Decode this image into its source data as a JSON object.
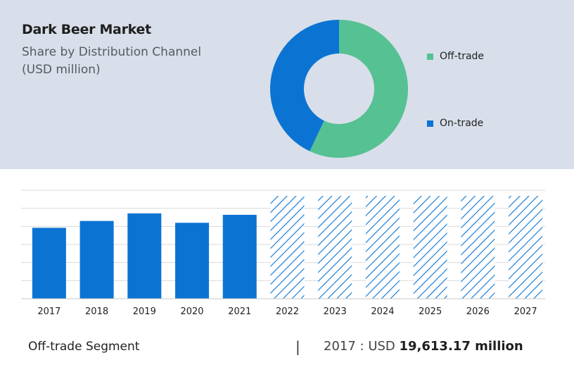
{
  "header": {
    "title": "Dark Beer Market",
    "subtitle_line1": "Share by Distribution Channel",
    "subtitle_line2": "(USD million)"
  },
  "colors": {
    "off_trade": "#56c193",
    "on_trade": "#0b74d3",
    "bar": "#0b74d3",
    "forecast_hatch": "#0b74d3",
    "top_background": "#d8dfea",
    "gridline": "#d9d9d9"
  },
  "chart_data": [
    {
      "type": "pie",
      "variant": "donut",
      "series": [
        {
          "name": "Off-trade",
          "value": 57
        },
        {
          "name": "On-trade",
          "value": 43
        }
      ],
      "legend_position": "right"
    },
    {
      "type": "bar",
      "categories": [
        "2017",
        "2018",
        "2019",
        "2020",
        "2021",
        "2022",
        "2023",
        "2024",
        "2025",
        "2026",
        "2027"
      ],
      "values": [
        19613.17,
        21500,
        23600,
        21000,
        23200,
        null,
        null,
        null,
        null,
        null,
        null
      ],
      "forecast_categories": [
        "2022",
        "2023",
        "2024",
        "2025",
        "2026",
        "2027"
      ],
      "ylim": [
        0,
        30000
      ],
      "grid": true
    }
  ],
  "footer": {
    "segment": "Off-trade Segment",
    "divider": "|",
    "year_label": "2017 :  USD ",
    "value": "19,613.17 million"
  }
}
